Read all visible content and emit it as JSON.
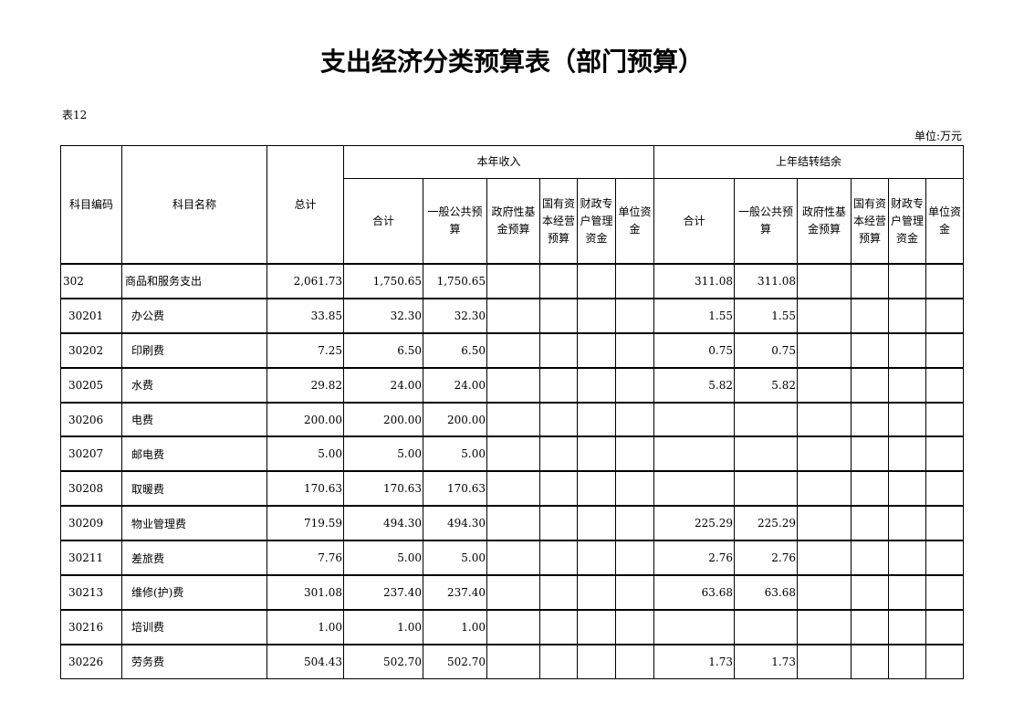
{
  "title": "支出经济分类预算表（部门预算）",
  "table_no": "表12",
  "unit": "单位:万元",
  "headers": {
    "code": "科目编码",
    "name": "科目名称",
    "total": "总计",
    "group_current": "本年收入",
    "group_carryover": "上年结转结余",
    "sub": [
      "合计",
      "一般公共预算",
      "政府性基金预算",
      "国有资本经营预算",
      "财政专户管理资金",
      "单位资金"
    ]
  },
  "rows": [
    {
      "code": "302",
      "name": "商品和服务支出",
      "level": 0,
      "total": "2,061.73",
      "cur": [
        "1,750.65",
        "1,750.65",
        "",
        "",
        "",
        ""
      ],
      "prev": [
        "311.08",
        "311.08",
        "",
        "",
        "",
        ""
      ]
    },
    {
      "code": "30201",
      "name": "办公费",
      "level": 1,
      "total": "33.85",
      "cur": [
        "32.30",
        "32.30",
        "",
        "",
        "",
        ""
      ],
      "prev": [
        "1.55",
        "1.55",
        "",
        "",
        "",
        ""
      ]
    },
    {
      "code": "30202",
      "name": "印刷费",
      "level": 1,
      "total": "7.25",
      "cur": [
        "6.50",
        "6.50",
        "",
        "",
        "",
        ""
      ],
      "prev": [
        "0.75",
        "0.75",
        "",
        "",
        "",
        ""
      ]
    },
    {
      "code": "30205",
      "name": "水费",
      "level": 1,
      "total": "29.82",
      "cur": [
        "24.00",
        "24.00",
        "",
        "",
        "",
        ""
      ],
      "prev": [
        "5.82",
        "5.82",
        "",
        "",
        "",
        ""
      ]
    },
    {
      "code": "30206",
      "name": "电费",
      "level": 1,
      "total": "200.00",
      "cur": [
        "200.00",
        "200.00",
        "",
        "",
        "",
        ""
      ],
      "prev": [
        "",
        "",
        "",
        "",
        "",
        ""
      ]
    },
    {
      "code": "30207",
      "name": "邮电费",
      "level": 1,
      "total": "5.00",
      "cur": [
        "5.00",
        "5.00",
        "",
        "",
        "",
        ""
      ],
      "prev": [
        "",
        "",
        "",
        "",
        "",
        ""
      ]
    },
    {
      "code": "30208",
      "name": "取暖费",
      "level": 1,
      "total": "170.63",
      "cur": [
        "170.63",
        "170.63",
        "",
        "",
        "",
        ""
      ],
      "prev": [
        "",
        "",
        "",
        "",
        "",
        ""
      ]
    },
    {
      "code": "30209",
      "name": "物业管理费",
      "level": 1,
      "total": "719.59",
      "cur": [
        "494.30",
        "494.30",
        "",
        "",
        "",
        ""
      ],
      "prev": [
        "225.29",
        "225.29",
        "",
        "",
        "",
        ""
      ]
    },
    {
      "code": "30211",
      "name": "差旅费",
      "level": 1,
      "total": "7.76",
      "cur": [
        "5.00",
        "5.00",
        "",
        "",
        "",
        ""
      ],
      "prev": [
        "2.76",
        "2.76",
        "",
        "",
        "",
        ""
      ]
    },
    {
      "code": "30213",
      "name": "维修(护)费",
      "level": 1,
      "total": "301.08",
      "cur": [
        "237.40",
        "237.40",
        "",
        "",
        "",
        ""
      ],
      "prev": [
        "63.68",
        "63.68",
        "",
        "",
        "",
        ""
      ]
    },
    {
      "code": "30216",
      "name": "培训费",
      "level": 1,
      "total": "1.00",
      "cur": [
        "1.00",
        "1.00",
        "",
        "",
        "",
        ""
      ],
      "prev": [
        "",
        "",
        "",
        "",
        "",
        ""
      ]
    },
    {
      "code": "30226",
      "name": "劳务费",
      "level": 1,
      "total": "504.43",
      "cur": [
        "502.70",
        "502.70",
        "",
        "",
        "",
        ""
      ],
      "prev": [
        "1.73",
        "1.73",
        "",
        "",
        "",
        ""
      ]
    }
  ]
}
